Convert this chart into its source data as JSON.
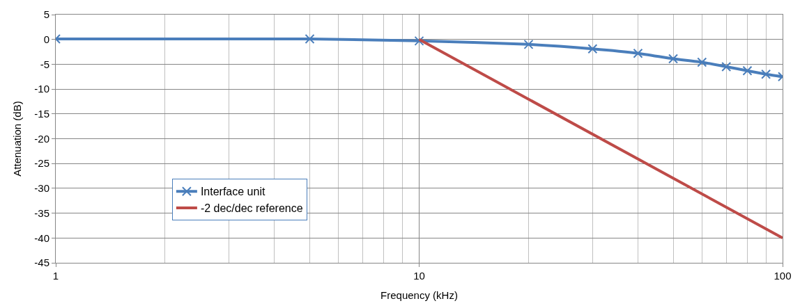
{
  "chart_data": {
    "type": "line",
    "xlabel": "Frequency (kHz)",
    "ylabel": "Attenuation (dB)",
    "log": "x",
    "xlim": [
      1,
      100
    ],
    "xticks": [
      1,
      10,
      100
    ],
    "ylim": [
      -45,
      5
    ],
    "yticks": [
      -45,
      -40,
      -35,
      -30,
      -25,
      -20,
      -15,
      -10,
      -5,
      0,
      5
    ],
    "grid": true,
    "legend": "bottom left",
    "series": [
      {
        "name": "Interface unit",
        "color": "#4a7ebb",
        "marker": "cross",
        "x": [
          1,
          5,
          10,
          20,
          30,
          40,
          50,
          60,
          70,
          80,
          90,
          100
        ],
        "values": [
          0.1,
          0.1,
          -0.3,
          -1.0,
          -1.9,
          -2.8,
          -3.9,
          -4.6,
          -5.5,
          -6.3,
          -7.0,
          -7.5
        ]
      },
      {
        "name": "-2 dec/dec reference",
        "color": "#be4b48",
        "marker": "none",
        "x": [
          10,
          100
        ],
        "values": [
          0,
          -40
        ]
      }
    ]
  }
}
